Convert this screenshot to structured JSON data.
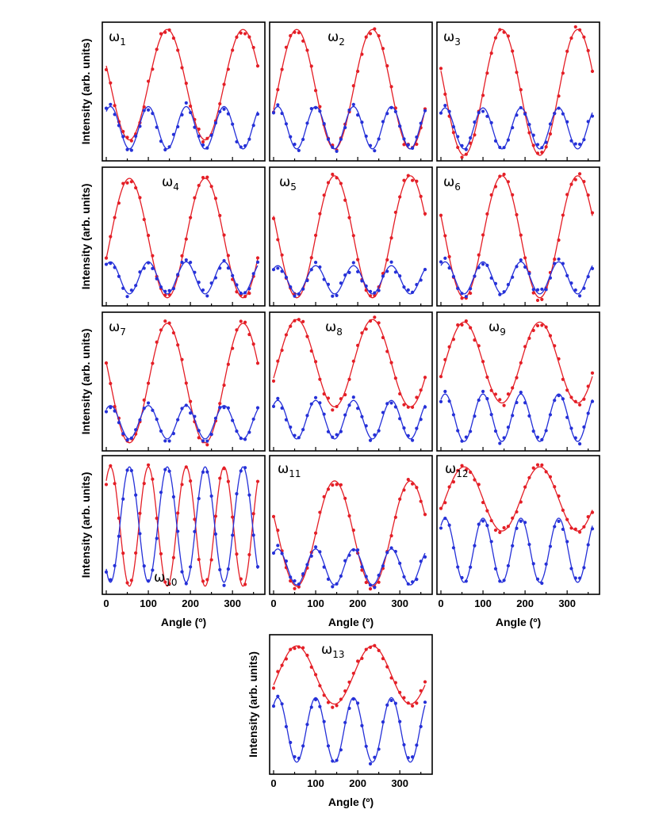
{
  "figure": {
    "x_axis_label": "Angle (º)",
    "y_axis_label": "Intensity (arb. units)",
    "x_ticks": [
      "0",
      "100",
      "200",
      "300"
    ],
    "series_colors": {
      "red": "#e41e26",
      "blue": "#2530d8"
    },
    "mode_symbol": "ω"
  },
  "chart_data": [
    {
      "type": "line",
      "title": "ω1",
      "mode": "1",
      "xlim": [
        0,
        360
      ],
      "ylim": [
        0,
        1
      ],
      "series": [
        {
          "name": "red",
          "model": "a + b*cos²(θ-p)",
          "a": 0.12,
          "b": 0.86,
          "phase_deg": 145
        },
        {
          "name": "blue",
          "model": "a + b*cos²(2(θ-p))",
          "a": 0.05,
          "b": 0.33,
          "phase_deg": 10
        }
      ]
    },
    {
      "type": "line",
      "title": "ω2",
      "mode": "2",
      "xlim": [
        0,
        360
      ],
      "ylim": [
        0,
        1
      ],
      "series": [
        {
          "name": "red",
          "model": "a + b*cos²(θ-p)",
          "a": 0.05,
          "b": 0.93,
          "phase_deg": 55
        },
        {
          "name": "blue",
          "model": "a + b*cos²(2(θ-p))",
          "a": 0.05,
          "b": 0.33,
          "phase_deg": 10
        }
      ]
    },
    {
      "type": "line",
      "title": "ω3",
      "mode": "3",
      "xlim": [
        0,
        360
      ],
      "ylim": [
        0,
        1
      ],
      "series": [
        {
          "name": "red",
          "model": "a + b*cos²(θ-p)",
          "a": 0.0,
          "b": 0.98,
          "phase_deg": 145
        },
        {
          "name": "blue",
          "model": "a + b*cos²(2(θ-p))",
          "a": 0.05,
          "b": 0.32,
          "phase_deg": 10
        }
      ]
    },
    {
      "type": "line",
      "title": "ω4",
      "mode": "4",
      "xlim": [
        0,
        360
      ],
      "ylim": [
        0,
        1
      ],
      "series": [
        {
          "name": "red",
          "model": "a + b*cos²(θ-p)",
          "a": 0.02,
          "b": 0.93,
          "phase_deg": 55
        },
        {
          "name": "blue",
          "model": "a + b*cos²(2(θ-p))",
          "a": 0.05,
          "b": 0.25,
          "phase_deg": 10
        }
      ]
    },
    {
      "type": "line",
      "title": "ω5",
      "mode": "5",
      "xlim": [
        0,
        360
      ],
      "ylim": [
        0,
        1
      ],
      "series": [
        {
          "name": "red",
          "model": "a + b*cos²(θ-p)",
          "a": 0.02,
          "b": 0.95,
          "phase_deg": 145
        },
        {
          "name": "blue",
          "model": "a + b*cos²(2(θ-p))",
          "a": 0.05,
          "b": 0.22,
          "phase_deg": 10
        }
      ]
    },
    {
      "type": "line",
      "title": "ω6",
      "mode": "6",
      "xlim": [
        0,
        360
      ],
      "ylim": [
        0,
        1
      ],
      "series": [
        {
          "name": "red",
          "model": "a + b*cos²(θ-p)",
          "a": 0.02,
          "b": 0.95,
          "phase_deg": 145
        },
        {
          "name": "blue",
          "model": "a + b*cos²(2(θ-p))",
          "a": 0.05,
          "b": 0.25,
          "phase_deg": 10
        }
      ]
    },
    {
      "type": "line",
      "title": "ω7",
      "mode": "7",
      "xlim": [
        0,
        360
      ],
      "ylim": [
        0,
        1
      ],
      "series": [
        {
          "name": "red",
          "model": "a + b*cos²(θ-p)",
          "a": 0.02,
          "b": 0.93,
          "phase_deg": 145
        },
        {
          "name": "blue",
          "model": "a + b*cos²(2(θ-p))",
          "a": 0.05,
          "b": 0.26,
          "phase_deg": 10
        }
      ]
    },
    {
      "type": "line",
      "title": "ω8",
      "mode": "8",
      "xlim": [
        0,
        360
      ],
      "ylim": [
        0,
        1
      ],
      "series": [
        {
          "name": "red",
          "model": "a + b*cos²(θ-p)",
          "a": 0.3,
          "b": 0.68,
          "phase_deg": 55
        },
        {
          "name": "blue",
          "model": "a + b*cos²(2(θ-p))",
          "a": 0.05,
          "b": 0.3,
          "phase_deg": 10
        }
      ]
    },
    {
      "type": "line",
      "title": "ω9",
      "mode": "9",
      "xlim": [
        0,
        360
      ],
      "ylim": [
        0,
        1
      ],
      "series": [
        {
          "name": "red",
          "model": "a + b*cos²(θ-p)",
          "a": 0.33,
          "b": 0.63,
          "phase_deg": 55
        },
        {
          "name": "blue",
          "model": "a + b*cos²(2(θ-p))",
          "a": 0.03,
          "b": 0.37,
          "phase_deg": 10
        }
      ]
    },
    {
      "type": "line",
      "title": "ω10",
      "mode": "10",
      "label_position": "bottom",
      "xlim": [
        0,
        360
      ],
      "ylim": [
        0,
        1
      ],
      "series": [
        {
          "name": "red",
          "model": "a + b*cos²(2(θ-p))",
          "a": 0.02,
          "b": 0.93,
          "phase_deg": 10
        },
        {
          "name": "blue",
          "model": "a + b*cos²(2(θ-p))",
          "a": 0.05,
          "b": 0.9,
          "phase_deg": 55
        }
      ]
    },
    {
      "type": "line",
      "title": "ω11",
      "mode": "11",
      "xlim": [
        0,
        360
      ],
      "ylim": [
        0,
        1
      ],
      "series": [
        {
          "name": "red",
          "model": "a + b*cos²(θ-p)",
          "a": 0.02,
          "b": 0.82,
          "phase_deg": 145
        },
        {
          "name": "blue",
          "model": "a + b*cos²(2(θ-p))",
          "a": 0.03,
          "b": 0.28,
          "phase_deg": 10
        }
      ]
    },
    {
      "type": "line",
      "title": "ω12",
      "mode": "12",
      "xlim": [
        0,
        360
      ],
      "ylim": [
        0,
        1
      ],
      "series": [
        {
          "name": "red",
          "model": "a + b*cos²(θ-p)",
          "a": 0.45,
          "b": 0.5,
          "phase_deg": 55
        },
        {
          "name": "blue",
          "model": "a + b*cos²(2(θ-p))",
          "a": 0.05,
          "b": 0.5,
          "phase_deg": 10
        }
      ]
    },
    {
      "type": "line",
      "title": "ω13",
      "mode": "13",
      "xlim": [
        0,
        360
      ],
      "ylim": [
        0,
        1
      ],
      "series": [
        {
          "name": "red",
          "model": "a + b*cos²(θ-p)",
          "a": 0.5,
          "b": 0.45,
          "phase_deg": 55
        },
        {
          "name": "blue",
          "model": "a + b*cos²(2(θ-p))",
          "a": 0.05,
          "b": 0.5,
          "phase_deg": 10
        }
      ]
    }
  ]
}
